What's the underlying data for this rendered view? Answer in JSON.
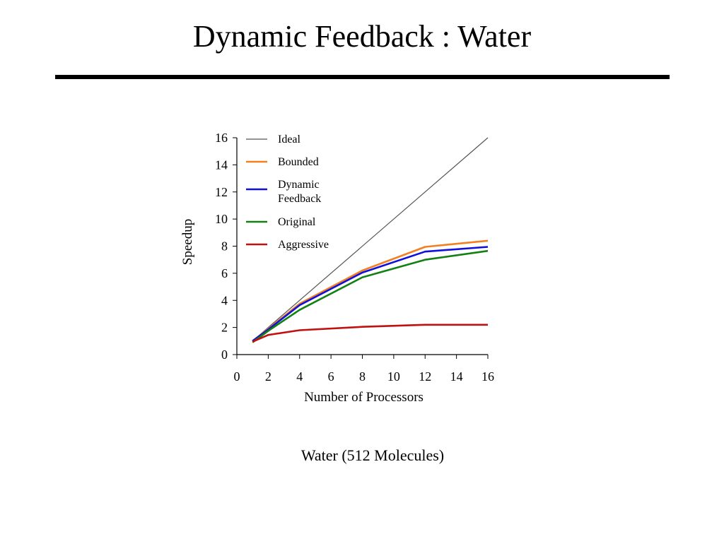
{
  "slide": {
    "title": "Dynamic Feedback : Water",
    "caption": "Water (512 Molecules)"
  },
  "chart_data": {
    "type": "line",
    "xlabel": "Number of Processors",
    "ylabel": "Speedup",
    "xlim": [
      0,
      16
    ],
    "ylim": [
      0,
      16
    ],
    "xticks": [
      "0",
      "2",
      "4",
      "6",
      "8",
      "10",
      "12",
      "14",
      "16"
    ],
    "yticks": [
      "0",
      "2",
      "4",
      "6",
      "8",
      "10",
      "12",
      "14",
      "16"
    ],
    "grid": false,
    "legend_position": "top-left",
    "series": [
      {
        "name": "Ideal",
        "color": "#555555",
        "x": [
          1,
          16
        ],
        "y": [
          1,
          16
        ]
      },
      {
        "name": "Bounded",
        "color": "#f28020",
        "x": [
          1,
          2,
          4,
          8,
          12,
          16
        ],
        "y": [
          1.0,
          1.9,
          3.75,
          6.2,
          7.95,
          8.4
        ]
      },
      {
        "name": "Dynamic\nFeedback",
        "color": "#1010dd",
        "x": [
          1,
          2,
          4,
          8,
          12,
          16
        ],
        "y": [
          1.0,
          1.85,
          3.65,
          6.05,
          7.6,
          7.95
        ]
      },
      {
        "name": "Original",
        "color": "#128012",
        "x": [
          1,
          2,
          4,
          8,
          12,
          16
        ],
        "y": [
          0.9,
          1.75,
          3.3,
          5.7,
          7.0,
          7.65
        ]
      },
      {
        "name": "Aggressive",
        "color": "#c01010",
        "x": [
          1,
          2,
          4,
          8,
          12,
          16
        ],
        "y": [
          0.95,
          1.45,
          1.8,
          2.05,
          2.2,
          2.2
        ]
      }
    ]
  }
}
